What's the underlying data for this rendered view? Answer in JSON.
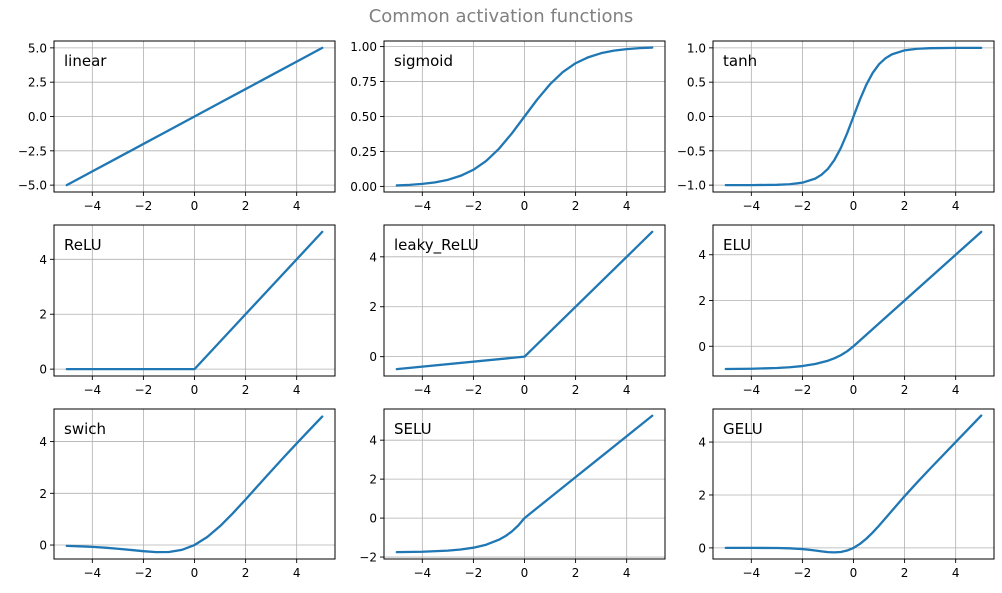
{
  "figure": {
    "title": "Common activation functions",
    "line_color": "#1f77b4",
    "grid_color": "#b0b0b0",
    "title_color": "#808080"
  },
  "chart_data": [
    {
      "type": "line",
      "label": "linear",
      "grid": true,
      "label_placement": "top-left",
      "xlim": [
        -5.5,
        5.5
      ],
      "ylim": [
        -5.5,
        5.5
      ],
      "xticks": [
        -4,
        -2,
        0,
        2,
        4
      ],
      "xtick_labels": [
        "−4",
        "−2",
        "0",
        "2",
        "4"
      ],
      "yticks": [
        -5,
        -2.5,
        0,
        2.5,
        5
      ],
      "ytick_labels": [
        "−5.0",
        "−2.5",
        "0.0",
        "2.5",
        "5.0"
      ],
      "x": [
        -5,
        -4,
        -3,
        -2,
        -1,
        0,
        1,
        2,
        3,
        4,
        5
      ],
      "y": [
        -5,
        -4,
        -3,
        -2,
        -1,
        0,
        1,
        2,
        3,
        4,
        5
      ]
    },
    {
      "type": "line",
      "label": "sigmoid",
      "grid": true,
      "label_placement": "top-left",
      "xlim": [
        -5.5,
        5.5
      ],
      "ylim": [
        -0.04,
        1.04
      ],
      "xticks": [
        -4,
        -2,
        0,
        2,
        4
      ],
      "xtick_labels": [
        "−4",
        "−2",
        "0",
        "2",
        "4"
      ],
      "yticks": [
        0,
        0.25,
        0.5,
        0.75,
        1
      ],
      "ytick_labels": [
        "0.00",
        "0.25",
        "0.50",
        "0.75",
        "1.00"
      ],
      "x": [
        -5,
        -4.5,
        -4,
        -3.5,
        -3,
        -2.5,
        -2,
        -1.5,
        -1,
        -0.5,
        0,
        0.5,
        1,
        1.5,
        2,
        2.5,
        3,
        3.5,
        4,
        4.5,
        5
      ],
      "y": [
        0.007,
        0.011,
        0.018,
        0.029,
        0.047,
        0.076,
        0.119,
        0.182,
        0.269,
        0.378,
        0.5,
        0.622,
        0.731,
        0.818,
        0.881,
        0.924,
        0.953,
        0.971,
        0.982,
        0.989,
        0.993
      ]
    },
    {
      "type": "line",
      "label": "tanh",
      "grid": true,
      "label_placement": "top-left",
      "xlim": [
        -5.5,
        5.5
      ],
      "ylim": [
        -1.1,
        1.1
      ],
      "xticks": [
        -4,
        -2,
        0,
        2,
        4
      ],
      "xtick_labels": [
        "−4",
        "−2",
        "0",
        "2",
        "4"
      ],
      "yticks": [
        -1,
        -0.5,
        0,
        0.5,
        1
      ],
      "ytick_labels": [
        "−1.0",
        "−0.5",
        "0.0",
        "0.5",
        "1.0"
      ],
      "x": [
        -5,
        -4,
        -3,
        -2.5,
        -2,
        -1.5,
        -1.25,
        -1,
        -0.75,
        -0.5,
        -0.25,
        0,
        0.25,
        0.5,
        0.75,
        1,
        1.25,
        1.5,
        2,
        2.5,
        3,
        4,
        5
      ],
      "y": [
        -0.9999,
        -0.9993,
        -0.995,
        -0.987,
        -0.964,
        -0.905,
        -0.848,
        -0.762,
        -0.635,
        -0.462,
        -0.245,
        0,
        0.245,
        0.462,
        0.635,
        0.762,
        0.848,
        0.905,
        0.964,
        0.987,
        0.995,
        0.9993,
        0.9999
      ]
    },
    {
      "type": "line",
      "label": "ReLU",
      "grid": true,
      "label_placement": "top-left",
      "xlim": [
        -5.5,
        5.5
      ],
      "ylim": [
        -0.25,
        5.25
      ],
      "xticks": [
        -4,
        -2,
        0,
        2,
        4
      ],
      "xtick_labels": [
        "−4",
        "−2",
        "0",
        "2",
        "4"
      ],
      "yticks": [
        0,
        2,
        4
      ],
      "ytick_labels": [
        "0",
        "2",
        "4"
      ],
      "x": [
        -5,
        0,
        5
      ],
      "y": [
        0,
        0,
        5
      ]
    },
    {
      "type": "line",
      "label": "leaky_ReLU",
      "grid": true,
      "label_placement": "top-left",
      "xlim": [
        -5.5,
        5.5
      ],
      "ylim": [
        -0.775,
        5.275
      ],
      "xticks": [
        -4,
        -2,
        0,
        2,
        4
      ],
      "xtick_labels": [
        "−4",
        "−2",
        "0",
        "2",
        "4"
      ],
      "yticks": [
        0,
        2,
        4
      ],
      "ytick_labels": [
        "0",
        "2",
        "4"
      ],
      "x": [
        -5,
        0,
        5
      ],
      "y": [
        -0.5,
        0,
        5
      ]
    },
    {
      "type": "line",
      "label": "ELU",
      "grid": true,
      "label_placement": "top-left",
      "xlim": [
        -5.5,
        5.5
      ],
      "ylim": [
        -1.3,
        5.3
      ],
      "xticks": [
        -4,
        -2,
        0,
        2,
        4
      ],
      "xtick_labels": [
        "−4",
        "−2",
        "0",
        "2",
        "4"
      ],
      "yticks": [
        0,
        2,
        4
      ],
      "ytick_labels": [
        "0",
        "2",
        "4"
      ],
      "x": [
        -5,
        -4,
        -3,
        -2.5,
        -2,
        -1.5,
        -1,
        -0.75,
        -0.5,
        -0.25,
        0,
        1,
        2,
        3,
        4,
        5
      ],
      "y": [
        -0.993,
        -0.982,
        -0.95,
        -0.918,
        -0.865,
        -0.777,
        -0.632,
        -0.528,
        -0.393,
        -0.221,
        0,
        1,
        2,
        3,
        4,
        5
      ]
    },
    {
      "type": "line",
      "label": "swich",
      "grid": true,
      "label_placement": "top-left",
      "xlim": [
        -5.5,
        5.5
      ],
      "ylim": [
        -0.54,
        5.26
      ],
      "xticks": [
        -4,
        -2,
        0,
        2,
        4
      ],
      "xtick_labels": [
        "−4",
        "−2",
        "0",
        "2",
        "4"
      ],
      "yticks": [
        0,
        2,
        4
      ],
      "ytick_labels": [
        "0",
        "2",
        "4"
      ],
      "x": [
        -5,
        -4.5,
        -4,
        -3.5,
        -3,
        -2.5,
        -2,
        -1.5,
        -1,
        -0.5,
        0,
        0.5,
        1,
        1.5,
        2,
        2.5,
        3,
        3.5,
        4,
        4.5,
        5
      ],
      "y": [
        -0.033,
        -0.05,
        -0.072,
        -0.103,
        -0.142,
        -0.19,
        -0.238,
        -0.273,
        -0.269,
        -0.189,
        0,
        0.311,
        0.731,
        1.227,
        1.762,
        2.31,
        2.858,
        3.398,
        3.928,
        4.451,
        4.967
      ]
    },
    {
      "type": "line",
      "label": "SELU",
      "grid": true,
      "label_placement": "top-left",
      "xlim": [
        -5.5,
        5.5
      ],
      "ylim": [
        -2.1,
        5.6
      ],
      "xticks": [
        -4,
        -2,
        0,
        2,
        4
      ],
      "xtick_labels": [
        "−4",
        "−2",
        "0",
        "2",
        "4"
      ],
      "yticks": [
        -2,
        0,
        2,
        4
      ],
      "ytick_labels": [
        "−2",
        "0",
        "2",
        "4"
      ],
      "x": [
        -5,
        -4,
        -3,
        -2.5,
        -2,
        -1.5,
        -1,
        -0.75,
        -0.5,
        -0.25,
        0,
        1,
        2,
        3,
        4,
        5
      ],
      "y": [
        -1.746,
        -1.727,
        -1.67,
        -1.612,
        -1.52,
        -1.366,
        -1.111,
        -0.928,
        -0.692,
        -0.388,
        0,
        1.051,
        2.101,
        3.152,
        4.203,
        5.254
      ]
    },
    {
      "type": "line",
      "label": "GELU",
      "grid": true,
      "label_placement": "top-left",
      "xlim": [
        -5.5,
        5.5
      ],
      "ylim": [
        -0.42,
        5.25
      ],
      "xticks": [
        -4,
        -2,
        0,
        2,
        4
      ],
      "xtick_labels": [
        "−4",
        "−2",
        "0",
        "2",
        "4"
      ],
      "yticks": [
        0,
        2,
        4
      ],
      "ytick_labels": [
        "0",
        "2",
        "4"
      ],
      "x": [
        -5,
        -4,
        -3,
        -2.5,
        -2,
        -1.75,
        -1.5,
        -1.25,
        -1,
        -0.75,
        -0.5,
        -0.25,
        0,
        0.25,
        0.5,
        0.75,
        1,
        1.5,
        2,
        2.5,
        3,
        4,
        5
      ],
      "y": [
        0,
        0,
        -0.004,
        -0.016,
        -0.045,
        -0.07,
        -0.1,
        -0.132,
        -0.159,
        -0.17,
        -0.154,
        -0.1,
        0,
        0.15,
        0.346,
        0.58,
        0.841,
        1.4,
        1.955,
        2.484,
        2.996,
        4.0,
        5.0
      ]
    }
  ]
}
